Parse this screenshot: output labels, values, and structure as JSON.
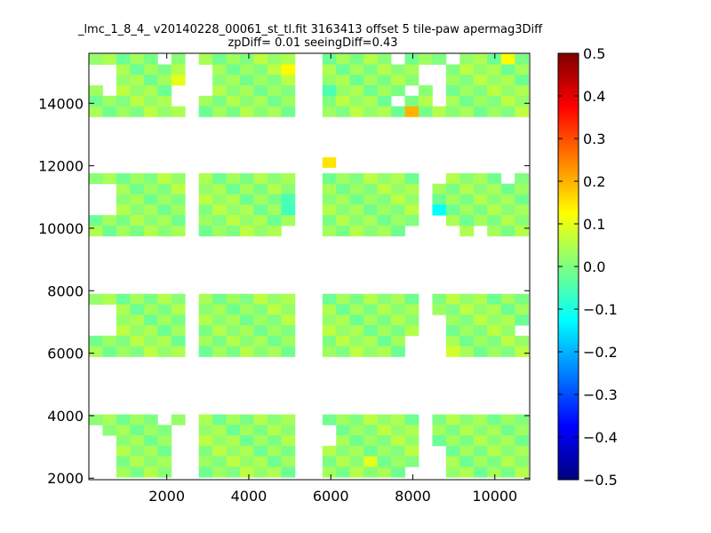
{
  "chart_data": {
    "type": "heatmap",
    "title_lines": [
      "_lmc_1_8_4_ v20140228_00061_st_tl.fit 3163413 offset 5 tile-paw apermag3Diff",
      "zpDiff= 0.01 seeingDiff=0.43"
    ],
    "xlim": [
      100,
      10850
    ],
    "ylim": [
      1950,
      15600
    ],
    "x_ticks": [
      2000,
      4000,
      6000,
      8000,
      10000
    ],
    "x_tick_labels": [
      "2000",
      "4000",
      "6000",
      "8000",
      "10000"
    ],
    "y_ticks": [
      2000,
      4000,
      6000,
      8000,
      10000,
      12000,
      14000
    ],
    "y_tick_labels": [
      "2000",
      "4000",
      "6000",
      "8000",
      "10000",
      "12000",
      "14000"
    ],
    "colorbar": {
      "colormap": "jet",
      "vmin": -0.5,
      "vmax": 0.5,
      "ticks": [
        0.5,
        0.4,
        0.3,
        0.2,
        0.1,
        0.0,
        -0.1,
        -0.2,
        -0.3,
        -0.4,
        -0.5
      ],
      "tick_labels": [
        "0.5",
        "0.4",
        "0.3",
        "0.2",
        "0.1",
        "0.0",
        "−0.1",
        "−0.2",
        "−0.3",
        "−0.4",
        "−0.5"
      ]
    },
    "cell_size": 335,
    "x_columns": [
      100,
      435,
      770,
      1105,
      1440,
      1775,
      2110,
      2780,
      3115,
      3450,
      3785,
      4120,
      4455,
      4790,
      5795,
      6130,
      6465,
      6800,
      7135,
      7470,
      7805,
      8140,
      8475,
      8810,
      9145,
      9480,
      9815,
      10150,
      10485
    ],
    "y_rows_top": [
      15580,
      15245,
      14910,
      14575,
      14240,
      13905,
      11760,
      11425,
      11090,
      10755,
      10420,
      10085,
      7900,
      7565,
      7230,
      6895,
      6560,
      6225,
      4040,
      3705,
      3370,
      3035,
      2700,
      2365
    ],
    "typical_value": 0.02,
    "special_cells": [
      {
        "x": 7805,
        "y": 13905,
        "value": 0.2
      },
      {
        "x": 4790,
        "y": 15245,
        "value": 0.13
      },
      {
        "x": 2110,
        "y": 14910,
        "value": 0.1
      },
      {
        "x": 5795,
        "y": 12100,
        "value": 0.15
      },
      {
        "x": 8475,
        "y": 10755,
        "value": -0.12
      },
      {
        "x": 5795,
        "y": 14575,
        "value": -0.05
      },
      {
        "x": 4790,
        "y": 11090,
        "value": -0.05
      },
      {
        "x": 4790,
        "y": 10755,
        "value": -0.06
      },
      {
        "x": 6800,
        "y": 2700,
        "value": 0.1
      },
      {
        "x": 8810,
        "y": 6225,
        "value": 0.08
      },
      {
        "x": 10150,
        "y": 15580,
        "value": 0.12
      }
    ],
    "empty_cells": [
      [
        100,
        15245
      ],
      [
        100,
        14910
      ],
      [
        435,
        15245
      ],
      [
        435,
        14910
      ],
      [
        435,
        14575
      ],
      [
        1775,
        15580
      ],
      [
        2110,
        14575
      ],
      [
        2110,
        14240
      ],
      [
        2780,
        15245
      ],
      [
        2780,
        14910
      ],
      [
        2780,
        14575
      ],
      [
        7470,
        15580
      ],
      [
        8140,
        15245
      ],
      [
        8140,
        14910
      ],
      [
        8475,
        15245
      ],
      [
        8475,
        14910
      ],
      [
        8475,
        14575
      ],
      [
        8475,
        14240
      ],
      [
        8810,
        15580
      ],
      [
        7805,
        14575
      ],
      [
        7470,
        14240
      ],
      [
        100,
        11425
      ],
      [
        100,
        11090
      ],
      [
        100,
        10755
      ],
      [
        435,
        11425
      ],
      [
        435,
        11090
      ],
      [
        435,
        10755
      ],
      [
        4790,
        10085
      ],
      [
        7805,
        10085
      ],
      [
        8140,
        11760
      ],
      [
        8140,
        11425
      ],
      [
        8140,
        11090
      ],
      [
        8140,
        10755
      ],
      [
        8140,
        10420
      ],
      [
        8140,
        10085
      ],
      [
        8475,
        11760
      ],
      [
        8475,
        10420
      ],
      [
        8475,
        10085
      ],
      [
        8810,
        10085
      ],
      [
        9480,
        10085
      ],
      [
        10150,
        11760
      ],
      [
        100,
        7565
      ],
      [
        100,
        7230
      ],
      [
        100,
        6895
      ],
      [
        435,
        7565
      ],
      [
        435,
        7230
      ],
      [
        435,
        6895
      ],
      [
        7805,
        6560
      ],
      [
        7805,
        6225
      ],
      [
        8140,
        7900
      ],
      [
        8140,
        7565
      ],
      [
        8140,
        7230
      ],
      [
        8140,
        6895
      ],
      [
        8140,
        6560
      ],
      [
        8140,
        6225
      ],
      [
        8475,
        7230
      ],
      [
        8475,
        6895
      ],
      [
        8475,
        6560
      ],
      [
        8475,
        6225
      ],
      [
        10485,
        6895
      ],
      [
        100,
        3705
      ],
      [
        100,
        3370
      ],
      [
        100,
        3035
      ],
      [
        100,
        2700
      ],
      [
        100,
        2365
      ],
      [
        435,
        3370
      ],
      [
        435,
        3035
      ],
      [
        435,
        2700
      ],
      [
        435,
        2365
      ],
      [
        1775,
        4040
      ],
      [
        2110,
        3705
      ],
      [
        2110,
        3370
      ],
      [
        2110,
        3035
      ],
      [
        2110,
        2700
      ],
      [
        2110,
        2365
      ],
      [
        5795,
        3705
      ],
      [
        5795,
        3370
      ],
      [
        8140,
        4040
      ],
      [
        8140,
        3705
      ],
      [
        8140,
        3370
      ],
      [
        8140,
        3035
      ],
      [
        8140,
        2700
      ],
      [
        8140,
        2365
      ],
      [
        8475,
        3035
      ],
      [
        8475,
        2700
      ],
      [
        8475,
        2365
      ],
      [
        7805,
        2365
      ]
    ]
  }
}
